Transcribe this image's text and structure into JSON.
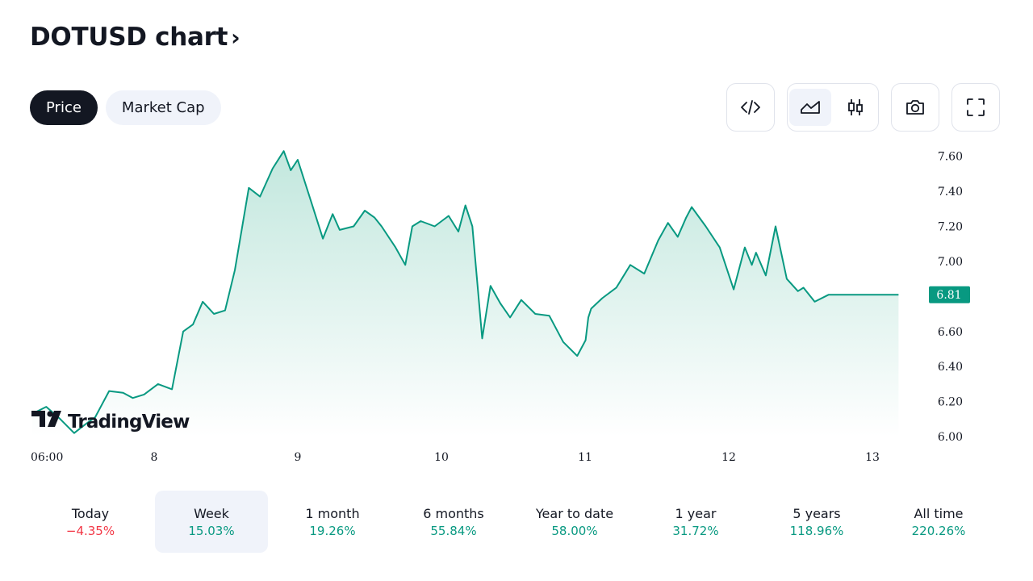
{
  "header": {
    "title": "DOTUSD chart",
    "chevron": "›"
  },
  "tabs": [
    {
      "label": "Price",
      "active": true
    },
    {
      "label": "Market Cap",
      "active": false
    }
  ],
  "toolbar": {
    "icons": [
      "embed-code-icon",
      "area-chart-icon",
      "candlestick-icon",
      "camera-icon",
      "fullscreen-icon"
    ],
    "selected": "area-chart-icon"
  },
  "chart_data": {
    "type": "area",
    "title": "",
    "x_tick_labels": [
      "06:00",
      "8",
      "9",
      "10",
      "11",
      "12",
      "13"
    ],
    "y_tick_labels": [
      "7.60",
      "7.40",
      "7.20",
      "7.00",
      "6.60",
      "6.40",
      "6.20",
      "6.00"
    ],
    "ylim": [
      6.0,
      7.64
    ],
    "xlim": [
      0,
      6.4
    ],
    "last_price_label": "6.81",
    "watermark": "TradingView",
    "colors": {
      "line": "#089981",
      "fill_top": "#bfe6dc",
      "fill_bottom": "#ffffff",
      "badge": "#089981"
    },
    "series": [
      {
        "x": [
          0.0,
          0.1,
          0.2,
          0.3,
          0.38,
          0.45,
          0.55,
          0.65,
          0.72,
          0.8,
          0.9,
          1.0,
          1.08,
          1.15,
          1.22,
          1.3,
          1.38,
          1.45,
          1.55,
          1.63,
          1.72,
          1.8,
          1.85,
          1.9,
          2.0,
          2.08,
          2.15,
          2.2,
          2.3,
          2.38,
          2.45,
          2.5,
          2.6,
          2.67,
          2.72,
          2.78,
          2.88,
          2.98,
          3.05,
          3.1,
          3.15,
          3.22,
          3.28,
          3.35,
          3.42,
          3.5,
          3.6,
          3.7,
          3.8,
          3.9,
          3.96,
          3.98,
          4.0,
          4.08,
          4.18,
          4.28,
          4.38,
          4.48,
          4.55,
          4.62,
          4.68,
          4.72,
          4.82,
          4.92,
          5.02,
          5.1,
          5.15,
          5.18,
          5.25,
          5.32,
          5.4,
          5.48,
          5.52,
          5.6,
          5.7,
          5.75,
          5.8,
          5.88,
          5.95,
          6.0,
          6.08,
          6.15,
          6.2
        ],
        "y": [
          6.13,
          6.17,
          6.1,
          6.02,
          6.07,
          6.11,
          6.26,
          6.25,
          6.22,
          6.24,
          6.3,
          6.27,
          6.6,
          6.64,
          6.77,
          6.7,
          6.72,
          6.95,
          7.42,
          7.37,
          7.53,
          7.63,
          7.52,
          7.58,
          7.33,
          7.13,
          7.27,
          7.18,
          7.2,
          7.29,
          7.25,
          7.2,
          7.08,
          6.98,
          7.2,
          7.23,
          7.2,
          7.26,
          7.17,
          7.32,
          7.2,
          6.56,
          6.86,
          6.76,
          6.68,
          6.78,
          6.7,
          6.69,
          6.54,
          6.46,
          6.55,
          6.68,
          6.73,
          6.79,
          6.85,
          6.98,
          6.93,
          7.12,
          7.22,
          7.14,
          7.25,
          7.31,
          7.2,
          7.08,
          6.84,
          7.08,
          6.98,
          7.05,
          6.92,
          7.2,
          6.9,
          6.83,
          6.85,
          6.77,
          6.81,
          6.81,
          6.81,
          6.81,
          6.81,
          6.81,
          6.81,
          6.81,
          6.81
        ]
      }
    ]
  },
  "periods": [
    {
      "label": "Today",
      "value": "−4.35%",
      "trend": "neg"
    },
    {
      "label": "Week",
      "value": "15.03%",
      "trend": "pos",
      "selected": true
    },
    {
      "label": "1 month",
      "value": "19.26%",
      "trend": "pos"
    },
    {
      "label": "6 months",
      "value": "55.84%",
      "trend": "pos"
    },
    {
      "label": "Year to date",
      "value": "58.00%",
      "trend": "pos"
    },
    {
      "label": "1 year",
      "value": "31.72%",
      "trend": "pos"
    },
    {
      "label": "5 years",
      "value": "118.96%",
      "trend": "pos"
    },
    {
      "label": "All time",
      "value": "220.26%",
      "trend": "pos"
    }
  ]
}
